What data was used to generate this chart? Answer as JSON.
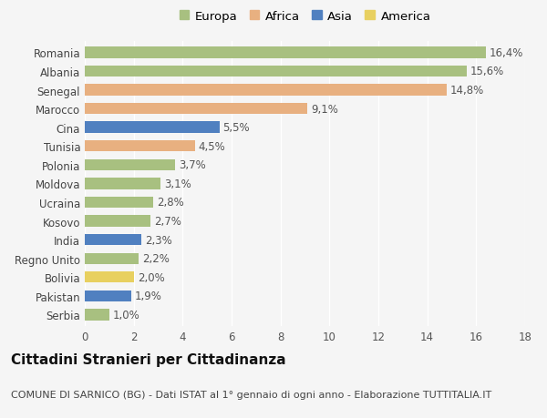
{
  "categories": [
    "Romania",
    "Albania",
    "Senegal",
    "Marocco",
    "Cina",
    "Tunisia",
    "Polonia",
    "Moldova",
    "Ucraina",
    "Kosovo",
    "India",
    "Regno Unito",
    "Bolivia",
    "Pakistan",
    "Serbia"
  ],
  "values": [
    16.4,
    15.6,
    14.8,
    9.1,
    5.5,
    4.5,
    3.7,
    3.1,
    2.8,
    2.7,
    2.3,
    2.2,
    2.0,
    1.9,
    1.0
  ],
  "labels": [
    "16,4%",
    "15,6%",
    "14,8%",
    "9,1%",
    "5,5%",
    "4,5%",
    "3,7%",
    "3,1%",
    "2,8%",
    "2,7%",
    "2,3%",
    "2,2%",
    "2,0%",
    "1,9%",
    "1,0%"
  ],
  "continents": [
    "Europa",
    "Europa",
    "Africa",
    "Africa",
    "Asia",
    "Africa",
    "Europa",
    "Europa",
    "Europa",
    "Europa",
    "Asia",
    "Europa",
    "America",
    "Asia",
    "Europa"
  ],
  "continent_colors": {
    "Europa": "#a8c080",
    "Africa": "#e8b080",
    "Asia": "#5080c0",
    "America": "#e8d060"
  },
  "legend_items": [
    "Europa",
    "Africa",
    "Asia",
    "America"
  ],
  "legend_colors": [
    "#a8c080",
    "#e8b080",
    "#5080c0",
    "#e8d060"
  ],
  "xlim": [
    0,
    18
  ],
  "xticks": [
    0,
    2,
    4,
    6,
    8,
    10,
    12,
    14,
    16,
    18
  ],
  "title": "Cittadini Stranieri per Cittadinanza",
  "subtitle": "COMUNE DI SARNICO (BG) - Dati ISTAT al 1° gennaio di ogni anno - Elaborazione TUTTITALIA.IT",
  "background_color": "#f5f5f5",
  "bar_height": 0.6,
  "label_fontsize": 8.5,
  "tick_fontsize": 8.5,
  "title_fontsize": 11,
  "subtitle_fontsize": 8
}
